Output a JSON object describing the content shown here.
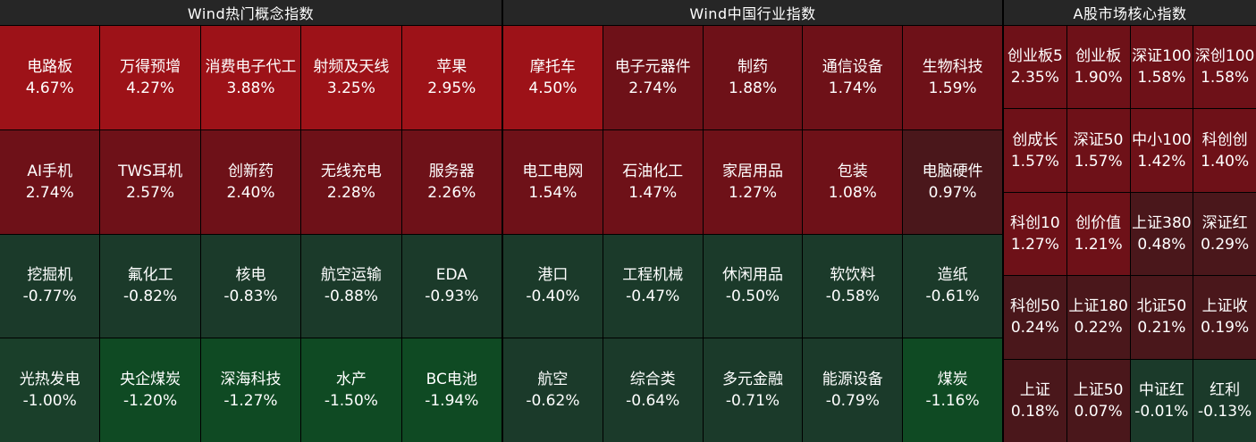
{
  "colors": {
    "up_strong": "#9d1218",
    "up_mid": "#6e1118",
    "up_weak": "#4a171b",
    "down_weak": "#1b3a2a",
    "down_mid": "#1a3f2a",
    "down_strong": "#0f4a23"
  },
  "chart_data": [
    {
      "type": "heatmap",
      "title": "Wind热门概念指数",
      "columns": 5,
      "tiles": [
        {
          "name": "电路板",
          "label": "4.67%",
          "value": 4.67
        },
        {
          "name": "万得预增",
          "label": "4.27%",
          "value": 4.27
        },
        {
          "name": "消费电子代工",
          "label": "3.88%",
          "value": 3.88
        },
        {
          "name": "射频及天线",
          "label": "3.25%",
          "value": 3.25
        },
        {
          "name": "苹果",
          "label": "2.95%",
          "value": 2.95
        },
        {
          "name": "AI手机",
          "label": "2.74%",
          "value": 2.74
        },
        {
          "name": "TWS耳机",
          "label": "2.57%",
          "value": 2.57
        },
        {
          "name": "创新药",
          "label": "2.40%",
          "value": 2.4
        },
        {
          "name": "无线充电",
          "label": "2.28%",
          "value": 2.28
        },
        {
          "name": "服务器",
          "label": "2.26%",
          "value": 2.26
        },
        {
          "name": "挖掘机",
          "label": "-0.77%",
          "value": -0.77
        },
        {
          "name": "氟化工",
          "label": "-0.82%",
          "value": -0.82
        },
        {
          "name": "核电",
          "label": "-0.83%",
          "value": -0.83
        },
        {
          "name": "航空运输",
          "label": "-0.88%",
          "value": -0.88
        },
        {
          "name": "EDA",
          "label": "-0.93%",
          "value": -0.93
        },
        {
          "name": "光热发电",
          "label": "-1.00%",
          "value": -1.0
        },
        {
          "name": "央企煤炭",
          "label": "-1.20%",
          "value": -1.2
        },
        {
          "name": "深海科技",
          "label": "-1.27%",
          "value": -1.27
        },
        {
          "name": "水产",
          "label": "-1.50%",
          "value": -1.5
        },
        {
          "name": "BC电池",
          "label": "-1.94%",
          "value": -1.94
        }
      ]
    },
    {
      "type": "heatmap",
      "title": "Wind中国行业指数",
      "columns": 5,
      "tiles": [
        {
          "name": "摩托车",
          "label": "4.50%",
          "value": 4.5
        },
        {
          "name": "电子元器件",
          "label": "2.74%",
          "value": 2.74
        },
        {
          "name": "制药",
          "label": "1.88%",
          "value": 1.88
        },
        {
          "name": "通信设备",
          "label": "1.74%",
          "value": 1.74
        },
        {
          "name": "生物科技",
          "label": "1.59%",
          "value": 1.59
        },
        {
          "name": "电工电网",
          "label": "1.54%",
          "value": 1.54
        },
        {
          "name": "石油化工",
          "label": "1.47%",
          "value": 1.47
        },
        {
          "name": "家居用品",
          "label": "1.27%",
          "value": 1.27
        },
        {
          "name": "包装",
          "label": "1.08%",
          "value": 1.08
        },
        {
          "name": "电脑硬件",
          "label": "0.97%",
          "value": 0.97
        },
        {
          "name": "港口",
          "label": "-0.40%",
          "value": -0.4
        },
        {
          "name": "工程机械",
          "label": "-0.47%",
          "value": -0.47
        },
        {
          "name": "休闲用品",
          "label": "-0.50%",
          "value": -0.5
        },
        {
          "name": "软饮料",
          "label": "-0.58%",
          "value": -0.58
        },
        {
          "name": "造纸",
          "label": "-0.61%",
          "value": -0.61
        },
        {
          "name": "航空",
          "label": "-0.62%",
          "value": -0.62
        },
        {
          "name": "综合类",
          "label": "-0.64%",
          "value": -0.64
        },
        {
          "name": "多元金融",
          "label": "-0.71%",
          "value": -0.71
        },
        {
          "name": "能源设备",
          "label": "-0.79%",
          "value": -0.79
        },
        {
          "name": "煤炭",
          "label": "-1.16%",
          "value": -1.16
        }
      ]
    },
    {
      "type": "heatmap",
      "title": "A股市场核心指数",
      "columns": 4,
      "tiles": [
        {
          "name": "创业板5",
          "label": "2.35%",
          "value": 2.35
        },
        {
          "name": "创业板",
          "label": "1.90%",
          "value": 1.9
        },
        {
          "name": "深证100",
          "label": "1.58%",
          "value": 1.58
        },
        {
          "name": "深创100",
          "label": "1.58%",
          "value": 1.58
        },
        {
          "name": "创成长",
          "label": "1.57%",
          "value": 1.57
        },
        {
          "name": "深证50",
          "label": "1.57%",
          "value": 1.57
        },
        {
          "name": "中小100",
          "label": "1.42%",
          "value": 1.42
        },
        {
          "name": "科创创",
          "label": "1.40%",
          "value": 1.4
        },
        {
          "name": "科创10",
          "label": "1.27%",
          "value": 1.27
        },
        {
          "name": "创价值",
          "label": "1.21%",
          "value": 1.21
        },
        {
          "name": "上证380",
          "label": "0.48%",
          "value": 0.48
        },
        {
          "name": "深证红",
          "label": "0.29%",
          "value": 0.29
        },
        {
          "name": "科创50",
          "label": "0.24%",
          "value": 0.24
        },
        {
          "name": "上证180",
          "label": "0.22%",
          "value": 0.22
        },
        {
          "name": "北证50",
          "label": "0.21%",
          "value": 0.21
        },
        {
          "name": "上证收",
          "label": "0.19%",
          "value": 0.19
        },
        {
          "name": "上证",
          "label": "0.18%",
          "value": 0.18
        },
        {
          "name": "上证50",
          "label": "0.07%",
          "value": 0.07
        },
        {
          "name": "中证红",
          "label": "-0.01%",
          "value": -0.01
        },
        {
          "name": "红利",
          "label": "-0.13%",
          "value": -0.13
        }
      ]
    }
  ]
}
